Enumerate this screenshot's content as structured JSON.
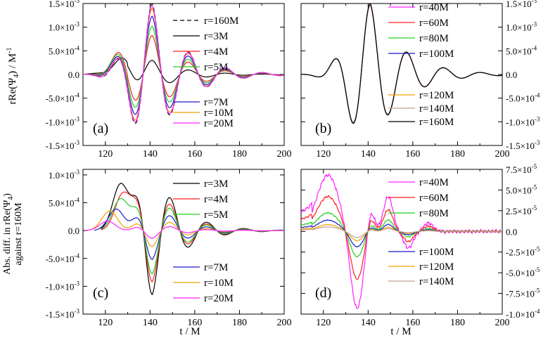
{
  "figure": {
    "y_label_top": "rRe(Ψ",
    "y_label_top_sub": "4",
    "y_label_top_unit": ") / M",
    "y_label_top_unit_exp": "-1",
    "y_label_bottom_line1": "Abs. diff. in rRe(Ψ",
    "y_label_bottom_sub": "4",
    "y_label_bottom_line1_end": ")",
    "y_label_bottom_line2": "against r=160M",
    "x_label": "t / M"
  },
  "chart_data": [
    {
      "panel": "(a)",
      "type": "line",
      "xlim": [
        110,
        200
      ],
      "ylim": [
        -0.0015,
        0.0015
      ],
      "xticks": [
        "120",
        "140",
        "160",
        "180",
        "200"
      ],
      "yticks": [
        {
          "mant": "1.5",
          "exp": "-3"
        },
        {
          "mant": "1.0",
          "exp": "-3"
        },
        {
          "mant": "5.0",
          "exp": "-4"
        },
        {
          "mant": "0.0",
          "exp": ""
        },
        {
          "mant": "-5.0",
          "exp": "-4"
        },
        {
          "mant": "-1.0",
          "exp": "-3"
        },
        {
          "mant": "-1.5",
          "exp": "-3"
        }
      ],
      "y_axis_side": "left",
      "grid": false,
      "series": [
        {
          "name": "r=160M",
          "color": "#000000",
          "dash": true,
          "amp": 1.0,
          "shift": 0
        },
        {
          "name": "r=3M",
          "color": "#000000",
          "dash": false,
          "amp": 0.2,
          "shift": 0.6
        },
        {
          "name": "r=4M",
          "color": "#ff2020",
          "dash": false,
          "amp": 0.55,
          "shift": 0.25
        },
        {
          "name": "r=5M",
          "color": "#20d020",
          "dash": false,
          "amp": 0.68,
          "shift": 0.15
        },
        {
          "name": "r=7M",
          "color": "#1a1acc",
          "dash": false,
          "amp": 0.82,
          "shift": 0.05
        },
        {
          "name": "r=10M",
          "color": "#f0a000",
          "dash": false,
          "amp": 0.93,
          "shift": 0.02
        },
        {
          "name": "r=20M",
          "color": "#ff20ff",
          "dash": false,
          "amp": 0.97,
          "shift": 0.0
        }
      ],
      "legend_groups": [
        [
          "r=160M",
          "r=3M",
          "r=4M",
          "r=5M"
        ],
        [
          "r=7M",
          "r=10M",
          "r=20M"
        ]
      ]
    },
    {
      "panel": "(b)",
      "type": "line",
      "xlim": [
        110,
        200
      ],
      "ylim": [
        -0.0015,
        0.0015
      ],
      "xticks": [
        "120",
        "140",
        "160",
        "180",
        "200"
      ],
      "yticks": [
        {
          "mant": "1.5",
          "exp": "-3"
        },
        {
          "mant": "1.0",
          "exp": "-3"
        },
        {
          "mant": "5.0",
          "exp": "-4"
        },
        {
          "mant": "0.0",
          "exp": ""
        },
        {
          "mant": "-5.0",
          "exp": "-4"
        },
        {
          "mant": "-1.0",
          "exp": "-3"
        },
        {
          "mant": "-1.5",
          "exp": "-3"
        }
      ],
      "y_axis_side": "right",
      "grid": false,
      "series": [
        {
          "name": "r=40M",
          "color": "#ff20ff"
        },
        {
          "name": "r=60M",
          "color": "#ff2020"
        },
        {
          "name": "r=80M",
          "color": "#20d020"
        },
        {
          "name": "r=100M",
          "color": "#1a1acc"
        },
        {
          "name": "r=120M",
          "color": "#f0a000"
        },
        {
          "name": "r=140M",
          "color": "#c0a090"
        },
        {
          "name": "r=160M",
          "color": "#000000"
        }
      ],
      "legend_groups": [
        [
          "r=40M",
          "r=60M",
          "r=80M",
          "r=100M"
        ],
        [
          "r=120M",
          "r=140M",
          "r=160M"
        ]
      ]
    },
    {
      "panel": "(c)",
      "type": "line",
      "xlim": [
        110,
        200
      ],
      "ylim": [
        -0.0015,
        0.0011
      ],
      "xticks": [
        "120",
        "140",
        "160",
        "180",
        "200"
      ],
      "yticks": [
        {
          "mant": "1.0",
          "exp": "-3"
        },
        {
          "mant": "5.0",
          "exp": "-4"
        },
        {
          "mant": "0.0",
          "exp": ""
        },
        {
          "mant": "-5.0",
          "exp": "-4"
        },
        {
          "mant": "-1.0",
          "exp": "-3"
        },
        {
          "mant": "-1.5",
          "exp": "-3"
        }
      ],
      "y_axis_side": "left",
      "grid": false,
      "series": [
        {
          "name": "r=3M",
          "color": "#000000",
          "amp": 1.0,
          "lead": 127
        },
        {
          "name": "r=4M",
          "color": "#ff2020",
          "amp": 0.8,
          "lead": 128
        },
        {
          "name": "r=5M",
          "color": "#20d020",
          "amp": 0.68,
          "lead": 127
        },
        {
          "name": "r=7M",
          "color": "#1a1acc",
          "amp": 0.45,
          "lead": 125
        },
        {
          "name": "r=10M",
          "color": "#f0a000",
          "amp": 0.25,
          "lead": 122
        },
        {
          "name": "r=20M",
          "color": "#ff20ff",
          "amp": 0.12,
          "lead": 121
        }
      ],
      "legend_groups": [
        [
          "r=3M",
          "r=4M",
          "r=5M"
        ],
        [
          "r=7M",
          "r=10M",
          "r=20M"
        ]
      ]
    },
    {
      "panel": "(d)",
      "type": "line",
      "xlim": [
        110,
        200
      ],
      "ylim": [
        -0.0001,
        7.5e-05
      ],
      "xticks": [
        "120",
        "140",
        "160",
        "180",
        "200"
      ],
      "yticks": [
        {
          "mant": "7.5",
          "exp": "-5"
        },
        {
          "mant": "5.0",
          "exp": "-5"
        },
        {
          "mant": "2.5",
          "exp": "-5"
        },
        {
          "mant": "0.0",
          "exp": ""
        },
        {
          "mant": "-2.5",
          "exp": "-5"
        },
        {
          "mant": "-5.0",
          "exp": "-5"
        },
        {
          "mant": "-7.5",
          "exp": "-5"
        },
        {
          "mant": "-1.0",
          "exp": "-4"
        }
      ],
      "y_axis_side": "right",
      "grid": false,
      "series": [
        {
          "name": "r=40M",
          "color": "#ff20ff",
          "amp": 1.0
        },
        {
          "name": "r=60M",
          "color": "#ff2020",
          "amp": 0.62
        },
        {
          "name": "r=80M",
          "color": "#20d020",
          "amp": 0.33
        },
        {
          "name": "r=100M",
          "color": "#1a1acc",
          "amp": 0.2
        },
        {
          "name": "r=120M",
          "color": "#f0a000",
          "amp": 0.12
        },
        {
          "name": "r=140M",
          "color": "#c0a090",
          "amp": 0.08
        }
      ],
      "legend_groups": [
        [
          "r=40M",
          "r=60M",
          "r=80M"
        ],
        [
          "r=100M",
          "r=120M",
          "r=140M"
        ]
      ]
    }
  ]
}
